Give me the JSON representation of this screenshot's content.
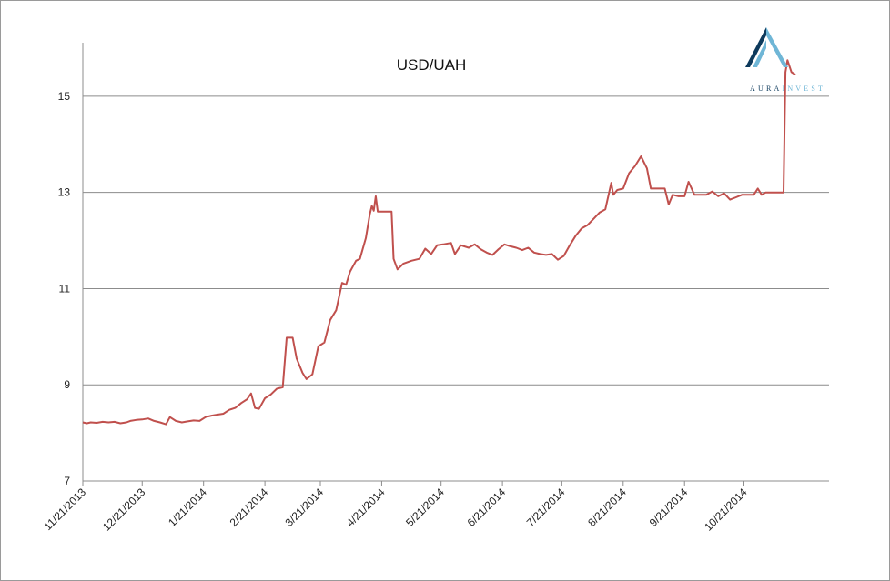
{
  "logo": {
    "part1": "AURA",
    "part2": "INVEST",
    "color_dark": "#0d3a5c",
    "color_light": "#6fb6d6"
  },
  "chart_data": {
    "type": "line",
    "title": "USD/UAH",
    "xlabel": "",
    "ylabel": "",
    "ylim": [
      7,
      16
    ],
    "yticks": [
      7,
      9,
      11,
      13,
      15
    ],
    "xlim": [
      "2013-11-21",
      "2014-12-03"
    ],
    "xticks": [
      "2013-11-21",
      "2013-12-21",
      "2014-01-21",
      "2014-02-21",
      "2014-03-21",
      "2014-04-21",
      "2014-05-21",
      "2014-06-21",
      "2014-07-21",
      "2014-08-21",
      "2014-09-21",
      "2014-10-21"
    ],
    "xtick_labels": [
      "11/21/2013",
      "12/21/2013",
      "1/21/2014",
      "2/21/2014",
      "3/21/2014",
      "4/21/2014",
      "5/21/2014",
      "6/21/2014",
      "7/21/2014",
      "8/21/2014",
      "9/21/2014",
      "10/21/2014"
    ],
    "grid": "horizontal",
    "legend": "none",
    "series": [
      {
        "color": "#c0504d",
        "points": [
          [
            "2013-11-21",
            8.22
          ],
          [
            "2013-11-23",
            8.2
          ],
          [
            "2013-11-25",
            8.22
          ],
          [
            "2013-11-28",
            8.21
          ],
          [
            "2013-12-01",
            8.23
          ],
          [
            "2013-12-04",
            8.22
          ],
          [
            "2013-12-07",
            8.23
          ],
          [
            "2013-12-10",
            8.2
          ],
          [
            "2013-12-13",
            8.22
          ],
          [
            "2013-12-15",
            8.25
          ],
          [
            "2013-12-18",
            8.27
          ],
          [
            "2013-12-21",
            8.28
          ],
          [
            "2013-12-24",
            8.3
          ],
          [
            "2013-12-27",
            8.25
          ],
          [
            "2013-12-30",
            8.22
          ],
          [
            "2014-01-02",
            8.18
          ],
          [
            "2014-01-04",
            8.33
          ],
          [
            "2014-01-07",
            8.25
          ],
          [
            "2014-01-10",
            8.22
          ],
          [
            "2014-01-13",
            8.24
          ],
          [
            "2014-01-16",
            8.26
          ],
          [
            "2014-01-19",
            8.25
          ],
          [
            "2014-01-22",
            8.33
          ],
          [
            "2014-01-25",
            8.36
          ],
          [
            "2014-01-28",
            8.38
          ],
          [
            "2014-01-31",
            8.4
          ],
          [
            "2014-02-03",
            8.48
          ],
          [
            "2014-02-06",
            8.52
          ],
          [
            "2014-02-09",
            8.62
          ],
          [
            "2014-02-12",
            8.7
          ],
          [
            "2014-02-14",
            8.82
          ],
          [
            "2014-02-16",
            8.52
          ],
          [
            "2014-02-18",
            8.5
          ],
          [
            "2014-02-21",
            8.72
          ],
          [
            "2014-02-24",
            8.8
          ],
          [
            "2014-02-27",
            8.92
          ],
          [
            "2014-03-02",
            8.95
          ],
          [
            "2014-03-04",
            9.98
          ],
          [
            "2014-03-07",
            9.98
          ],
          [
            "2014-03-09",
            9.55
          ],
          [
            "2014-03-12",
            9.25
          ],
          [
            "2014-03-14",
            9.12
          ],
          [
            "2014-03-17",
            9.22
          ],
          [
            "2014-03-20",
            9.8
          ],
          [
            "2014-03-23",
            9.88
          ],
          [
            "2014-03-26",
            10.35
          ],
          [
            "2014-03-29",
            10.55
          ],
          [
            "2014-04-01",
            11.12
          ],
          [
            "2014-04-03",
            11.08
          ],
          [
            "2014-04-05",
            11.35
          ],
          [
            "2014-04-08",
            11.58
          ],
          [
            "2014-04-10",
            11.62
          ],
          [
            "2014-04-13",
            12.05
          ],
          [
            "2014-04-15",
            12.55
          ],
          [
            "2014-04-16",
            12.72
          ],
          [
            "2014-04-17",
            12.62
          ],
          [
            "2014-04-18",
            12.92
          ],
          [
            "2014-04-19",
            12.6
          ],
          [
            "2014-04-26",
            12.6
          ],
          [
            "2014-04-27",
            11.62
          ],
          [
            "2014-04-29",
            11.4
          ],
          [
            "2014-05-02",
            11.52
          ],
          [
            "2014-05-06",
            11.58
          ],
          [
            "2014-05-10",
            11.62
          ],
          [
            "2014-05-13",
            11.83
          ],
          [
            "2014-05-16",
            11.72
          ],
          [
            "2014-05-19",
            11.9
          ],
          [
            "2014-05-22",
            11.92
          ],
          [
            "2014-05-26",
            11.95
          ],
          [
            "2014-05-28",
            11.72
          ],
          [
            "2014-05-31",
            11.9
          ],
          [
            "2014-06-04",
            11.85
          ],
          [
            "2014-06-07",
            11.92
          ],
          [
            "2014-06-10",
            11.82
          ],
          [
            "2014-06-13",
            11.75
          ],
          [
            "2014-06-16",
            11.7
          ],
          [
            "2014-06-19",
            11.82
          ],
          [
            "2014-06-22",
            11.92
          ],
          [
            "2014-06-25",
            11.88
          ],
          [
            "2014-06-28",
            11.85
          ],
          [
            "2014-07-01",
            11.8
          ],
          [
            "2014-07-04",
            11.85
          ],
          [
            "2014-07-07",
            11.75
          ],
          [
            "2014-07-10",
            11.72
          ],
          [
            "2014-07-13",
            11.7
          ],
          [
            "2014-07-16",
            11.72
          ],
          [
            "2014-07-19",
            11.6
          ],
          [
            "2014-07-22",
            11.68
          ],
          [
            "2014-07-25",
            11.9
          ],
          [
            "2014-07-28",
            12.1
          ],
          [
            "2014-07-31",
            12.25
          ],
          [
            "2014-08-03",
            12.32
          ],
          [
            "2014-08-06",
            12.45
          ],
          [
            "2014-08-09",
            12.58
          ],
          [
            "2014-08-12",
            12.65
          ],
          [
            "2014-08-15",
            13.2
          ],
          [
            "2014-08-16",
            12.95
          ],
          [
            "2014-08-18",
            13.05
          ],
          [
            "2014-08-21",
            13.08
          ],
          [
            "2014-08-24",
            13.4
          ],
          [
            "2014-08-27",
            13.55
          ],
          [
            "2014-08-30",
            13.75
          ],
          [
            "2014-09-02",
            13.5
          ],
          [
            "2014-09-04",
            13.08
          ],
          [
            "2014-09-11",
            13.08
          ],
          [
            "2014-09-13",
            12.75
          ],
          [
            "2014-09-15",
            12.95
          ],
          [
            "2014-09-18",
            12.92
          ],
          [
            "2014-09-21",
            12.92
          ],
          [
            "2014-09-23",
            13.22
          ],
          [
            "2014-09-26",
            12.95
          ],
          [
            "2014-09-29",
            12.95
          ],
          [
            "2014-10-02",
            12.95
          ],
          [
            "2014-10-05",
            13.02
          ],
          [
            "2014-10-08",
            12.92
          ],
          [
            "2014-10-11",
            12.98
          ],
          [
            "2014-10-14",
            12.85
          ],
          [
            "2014-10-17",
            12.9
          ],
          [
            "2014-10-20",
            12.95
          ],
          [
            "2014-10-23",
            12.95
          ],
          [
            "2014-10-26",
            12.95
          ],
          [
            "2014-10-28",
            13.08
          ],
          [
            "2014-10-30",
            12.95
          ],
          [
            "2014-11-01",
            13.0
          ],
          [
            "2014-11-10",
            13.0
          ],
          [
            "2014-11-11",
            15.5
          ],
          [
            "2014-11-12",
            15.75
          ],
          [
            "2014-11-14",
            15.5
          ],
          [
            "2014-11-16",
            15.45
          ]
        ]
      }
    ]
  }
}
